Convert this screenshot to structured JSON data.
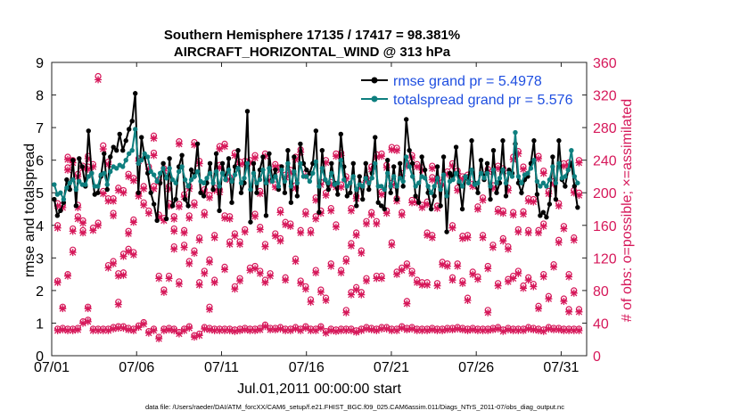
{
  "chart_data": {
    "type": "line",
    "title": "Southern Hemisphere 17135 / 17417 = 98.381%",
    "subtitle": "AIRCRAFT_HORIZONTAL_WIND @ 313 hPa",
    "xlabel": "Jul.01,2011 00:00:00 start",
    "ylabel_left": "rmse and totalspread",
    "ylabel_right": "# of obs: o=possible; ×=assimilated",
    "footer": "data file: /Users/raeder/DAI/ATM_forcXX/CAM6_setup/f.e21.FHIST_BGC.f09_025.CAM6assim.011/Diags_NTrS_2011-07/obs_diag_output.nc",
    "x_range": [
      0,
      31.5
    ],
    "ylim_left": [
      0,
      9
    ],
    "ylim_right": [
      0,
      360
    ],
    "x_ticks": [
      {
        "value": 0,
        "label": "07/01"
      },
      {
        "value": 5,
        "label": "07/06"
      },
      {
        "value": 10,
        "label": "07/11"
      },
      {
        "value": 15,
        "label": "07/16"
      },
      {
        "value": 20,
        "label": "07/21"
      },
      {
        "value": 25,
        "label": "07/26"
      },
      {
        "value": 30,
        "label": "07/31"
      }
    ],
    "y_ticks_left": [
      "0",
      "1",
      "2",
      "3",
      "4",
      "5",
      "6",
      "7",
      "8",
      "9"
    ],
    "y_ticks_right": [
      "0",
      "40",
      "80",
      "120",
      "160",
      "200",
      "240",
      "280",
      "320",
      "360"
    ],
    "colors": {
      "rmse": "#000000",
      "spread": "#0e7f7f",
      "obs": "#d6185a",
      "legend_text": "#1f4fe0"
    },
    "legend": [
      {
        "name": "rmse grand pr = 5.4978"
      },
      {
        "name": "totalspread grand pr = 5.576"
      }
    ],
    "rmse": [
      4.8,
      4.3,
      4.45,
      4.7,
      5.4,
      5.1,
      6.0,
      4.6,
      6.05,
      5.8,
      5.2,
      6.9,
      5.6,
      4.95,
      5.0,
      5.5,
      6.2,
      5.1,
      6.1,
      6.4,
      6.3,
      6.8,
      6.3,
      6.6,
      6.95,
      7.2,
      8.05,
      5.0,
      6.7,
      6.1,
      5.6,
      5.0,
      4.65,
      4.15,
      5.3,
      5.9,
      4.2,
      6.05,
      4.6,
      4.8,
      5.8,
      6.15,
      4.8,
      4.6,
      5.7,
      5.5,
      6.5,
      5.0,
      4.9,
      5.3,
      5.9,
      5.1,
      6.2,
      4.45,
      5.9,
      5.4,
      6.05,
      4.7,
      5.8,
      6.3,
      5.0,
      5.3,
      7.5,
      4.1,
      5.9,
      5.0,
      5.7,
      6.1,
      4.3,
      6.2,
      5.4,
      5.7,
      5.1,
      5.8,
      5.0,
      6.3,
      4.7,
      6.1,
      4.9,
      6.5,
      5.9,
      5.7,
      5.6,
      5.9,
      6.9,
      4.4,
      6.3,
      5.4,
      5.1,
      5.9,
      5.3,
      4.95,
      6.8,
      5.8,
      4.9,
      5.0,
      5.9,
      4.6,
      5.5,
      4.8,
      5.9,
      5.1,
      5.6,
      6.7,
      4.7,
      4.6,
      4.5,
      6.0,
      5.0,
      5.8,
      4.8,
      5.9,
      5.2,
      7.25,
      6.3,
      5.9,
      4.9,
      4.7,
      6.1,
      5.7,
      5.0,
      4.5,
      4.9,
      5.8,
      4.6,
      6.1,
      3.8,
      5.6,
      5.5,
      6.4,
      5.3,
      4.5,
      5.5,
      5.4,
      6.6,
      5.3,
      5.0,
      6.0,
      5.4,
      5.9,
      4.8,
      6.3,
      5.0,
      5.3,
      6.6,
      4.9,
      5.7,
      5.6,
      6.5,
      5.3,
      5.0,
      5.4,
      5.5,
      5.9,
      6.6,
      4.95,
      4.3,
      4.4,
      4.25,
      4.65,
      6.1,
      4.8,
      6.6,
      5.4,
      5.2,
      5.7,
      5.9,
      5.2,
      4.55
    ],
    "spread": [
      5.25,
      4.95,
      5.0,
      4.8,
      5.15,
      5.3,
      5.4,
      5.1,
      5.35,
      5.25,
      5.25,
      5.5,
      5.6,
      5.2,
      5.2,
      5.55,
      5.6,
      5.25,
      5.65,
      5.8,
      5.75,
      5.85,
      5.8,
      6.0,
      6.2,
      6.3,
      6.95,
      5.9,
      6.0,
      6.2,
      6.1,
      5.65,
      5.55,
      5.35,
      5.6,
      5.75,
      5.45,
      5.75,
      5.4,
      5.3,
      5.65,
      5.8,
      5.4,
      5.2,
      5.4,
      5.5,
      5.65,
      5.35,
      5.3,
      5.45,
      5.6,
      5.3,
      5.65,
      5.2,
      5.6,
      5.4,
      5.7,
      5.35,
      5.55,
      5.75,
      5.3,
      5.45,
      5.9,
      5.1,
      5.6,
      5.3,
      5.4,
      5.7,
      5.3,
      5.75,
      5.35,
      5.5,
      5.2,
      5.7,
      5.35,
      5.9,
      5.2,
      5.65,
      5.3,
      5.9,
      5.5,
      5.5,
      5.35,
      5.6,
      5.95,
      5.2,
      5.75,
      5.4,
      5.3,
      5.6,
      5.25,
      5.3,
      6.0,
      5.4,
      5.2,
      5.3,
      5.5,
      5.1,
      5.25,
      5.2,
      5.45,
      5.3,
      5.45,
      5.9,
      5.2,
      5.2,
      5.1,
      5.6,
      5.2,
      5.5,
      5.2,
      5.45,
      5.35,
      6.1,
      5.8,
      5.5,
      5.2,
      5.3,
      5.5,
      5.45,
      5.2,
      5.0,
      5.2,
      5.45,
      5.1,
      5.55,
      4.9,
      5.35,
      5.4,
      5.6,
      5.35,
      5.2,
      5.5,
      5.3,
      5.7,
      5.25,
      5.3,
      5.6,
      5.45,
      5.6,
      5.2,
      5.7,
      5.3,
      5.45,
      5.7,
      5.3,
      5.6,
      5.5,
      6.85,
      5.5,
      5.3,
      5.55,
      5.6,
      5.75,
      6.0,
      5.35,
      5.2,
      5.3,
      5.2,
      5.4,
      5.8,
      5.3,
      5.9,
      5.45,
      5.5,
      5.7,
      6.3,
      5.5,
      5.3
    ],
    "obs_possible_groups": [
      [
        33,
        92,
        160,
        187
      ],
      [
        34,
        60,
        185
      ],
      [
        33,
        100,
        231,
        244
      ],
      [
        33,
        130,
        156,
        240
      ],
      [
        34,
        171,
        185,
        223
      ],
      [
        42,
        154,
        166,
        233
      ],
      [
        44,
        60,
        232,
        245
      ],
      [
        33,
        157,
        235
      ],
      [
        33,
        163,
        343
      ],
      [
        33,
        202,
        258
      ],
      [
        33,
        111,
        193,
        238
      ],
      [
        35,
        116,
        175,
        193
      ],
      [
        36,
        66,
        101,
        206
      ],
      [
        36,
        102,
        125,
        203
      ],
      [
        34,
        131,
        153,
        223
      ],
      [
        33,
        127,
        167,
        218
      ],
      [
        37,
        199,
        242
      ],
      [
        41,
        188,
        208
      ],
      [
        30,
        178,
        232
      ],
      [
        33,
        208,
        249,
        270
      ],
      [
        23,
        98,
        173,
        216
      ],
      [
        33,
        81,
        169,
        230
      ],
      [
        34,
        98,
        187,
        208
      ],
      [
        33,
        134,
        156,
        171
      ],
      [
        29,
        91,
        186,
        263
      ],
      [
        33,
        136,
        154,
        198
      ],
      [
        36,
        116,
        172,
        208
      ],
      [
        25,
        129,
        188,
        262
      ],
      [
        27,
        90,
        145,
        239
      ],
      [
        35,
        104,
        176,
        204
      ],
      [
        34,
        60,
        118,
        197
      ],
      [
        33,
        93,
        148,
        206
      ],
      [
        33,
        204,
        234,
        257
      ],
      [
        33,
        109,
        172,
        260
      ],
      [
        33,
        140,
        171,
        219
      ],
      [
        32,
        85,
        150,
        249
      ],
      [
        33,
        95,
        140,
        238
      ],
      [
        34,
        155,
        239
      ],
      [
        33,
        108,
        240
      ],
      [
        33,
        110,
        174,
        246
      ],
      [
        34,
        104,
        158,
        202
      ],
      [
        38,
        93,
        137,
        248
      ],
      [
        34,
        101,
        218
      ],
      [
        34,
        150,
        210,
        235
      ],
      [
        35,
        144,
        179,
        231
      ],
      [
        33,
        96,
        164,
        222
      ],
      [
        33,
        162,
        228
      ],
      [
        35,
        119,
        209,
        244
      ],
      [
        33,
        92,
        154,
        253
      ],
      [
        36,
        85,
        177,
        224
      ],
      [
        33,
        69,
        154
      ],
      [
        33,
        105,
        171,
        194
      ],
      [
        36,
        81,
        178,
        213
      ],
      [
        30,
        71,
        200,
        240
      ],
      [
        33,
        113,
        181,
        213
      ],
      [
        32,
        161,
        210,
        248
      ],
      [
        33,
        105,
        210,
        249
      ],
      [
        33,
        56,
        119,
        220
      ],
      [
        33,
        78,
        138,
        181
      ],
      [
        31,
        84,
        151,
        196
      ],
      [
        33,
        78,
        129,
        210
      ],
      [
        35,
        95,
        165,
        218
      ],
      [
        34,
        176,
        232
      ],
      [
        33,
        98,
        165,
        247
      ],
      [
        35,
        98,
        201,
        248
      ],
      [
        35,
        178,
        234
      ],
      [
        33,
        139,
        212,
        256
      ],
      [
        33,
        103,
        193,
        255
      ],
      [
        36,
        108,
        176,
        224
      ],
      [
        34,
        67,
        113,
        236
      ],
      [
        35,
        104,
        191,
        246
      ],
      [
        33,
        93,
        191,
        235
      ],
      [
        33,
        90,
        185,
        231
      ],
      [
        33,
        90,
        151,
        189
      ],
      [
        34,
        148,
        219,
        233
      ],
      [
        33,
        89,
        184,
        218
      ],
      [
        33,
        115,
        213
      ],
      [
        34,
        113,
        226
      ],
      [
        34,
        96,
        160,
        236
      ],
      [
        35,
        113,
        206,
        227
      ],
      [
        34,
        92,
        147,
        220
      ],
      [
        33,
        71,
        148,
        222
      ],
      [
        34,
        103,
        211
      ],
      [
        33,
        97,
        183
      ],
      [
        33,
        148,
        194
      ],
      [
        33,
        56,
        110,
        229
      ],
      [
        34,
        136,
        209
      ],
      [
        35,
        89,
        180,
        233
      ],
      [
        32,
        144,
        178,
        230
      ],
      [
        34,
        94,
        134,
        206
      ],
      [
        33,
        98,
        176,
        244
      ],
      [
        33,
        104,
        155,
        251
      ],
      [
        33,
        86,
        177,
        232
      ],
      [
        35,
        96,
        154,
        193
      ],
      [
        34,
        88,
        192
      ],
      [
        33,
        61,
        154,
        245
      ],
      [
        32,
        100,
        162,
        227
      ],
      [
        35,
        73,
        202
      ],
      [
        34,
        112,
        214
      ],
      [
        34,
        142,
        187
      ],
      [
        33,
        70,
        159,
        236
      ],
      [
        33,
        57,
        100,
        237
      ],
      [
        33,
        80,
        145,
        203
      ],
      [
        33,
        57,
        200,
        240
      ]
    ],
    "obs_assimilated_groups": [
      [
        33,
        92,
        159,
        186
      ],
      [
        34,
        60,
        184
      ],
      [
        33,
        100,
        230,
        243
      ],
      [
        33,
        129,
        155,
        239
      ],
      [
        34,
        170,
        184,
        222
      ],
      [
        42,
        153,
        165,
        232
      ],
      [
        44,
        60,
        231,
        244
      ],
      [
        33,
        156,
        234
      ],
      [
        33,
        162,
        341
      ],
      [
        33,
        201,
        256
      ],
      [
        33,
        110,
        192,
        237
      ],
      [
        35,
        115,
        174,
        192
      ],
      [
        36,
        65,
        100,
        205
      ],
      [
        36,
        101,
        124,
        202
      ],
      [
        34,
        130,
        152,
        222
      ],
      [
        33,
        126,
        166,
        217
      ],
      [
        37,
        198,
        241
      ],
      [
        41,
        187,
        207
      ],
      [
        30,
        177,
        231
      ],
      [
        33,
        207,
        248,
        269
      ],
      [
        23,
        97,
        172,
        215
      ],
      [
        33,
        80,
        168,
        229
      ],
      [
        34,
        97,
        186,
        207
      ],
      [
        33,
        133,
        155,
        170
      ],
      [
        29,
        90,
        185,
        262
      ],
      [
        33,
        135,
        153,
        197
      ],
      [
        36,
        115,
        171,
        207
      ],
      [
        25,
        128,
        187,
        261
      ],
      [
        27,
        89,
        144,
        238
      ],
      [
        35,
        103,
        175,
        203
      ],
      [
        34,
        59,
        117,
        196
      ],
      [
        33,
        92,
        147,
        205
      ],
      [
        33,
        203,
        233,
        256
      ],
      [
        33,
        108,
        171,
        259
      ],
      [
        33,
        139,
        170,
        218
      ],
      [
        32,
        84,
        149,
        248
      ],
      [
        33,
        94,
        139,
        237
      ],
      [
        34,
        154,
        238
      ],
      [
        33,
        107,
        239
      ],
      [
        33,
        109,
        173,
        245
      ],
      [
        34,
        103,
        157,
        201
      ],
      [
        38,
        92,
        136,
        247
      ],
      [
        34,
        100,
        217
      ],
      [
        34,
        149,
        209,
        234
      ],
      [
        35,
        143,
        178,
        230
      ],
      [
        33,
        95,
        163,
        221
      ],
      [
        33,
        161,
        227
      ],
      [
        35,
        118,
        208,
        243
      ],
      [
        33,
        91,
        153,
        252
      ],
      [
        36,
        84,
        176,
        223
      ],
      [
        33,
        68,
        153
      ],
      [
        33,
        104,
        170,
        193
      ],
      [
        36,
        80,
        177,
        212
      ],
      [
        30,
        70,
        199,
        239
      ],
      [
        33,
        112,
        180,
        212
      ],
      [
        32,
        160,
        209,
        247
      ],
      [
        33,
        104,
        209,
        248
      ],
      [
        33,
        55,
        118,
        219
      ],
      [
        33,
        77,
        137,
        180
      ],
      [
        31,
        83,
        150,
        195
      ],
      [
        33,
        77,
        128,
        209
      ],
      [
        35,
        94,
        164,
        217
      ],
      [
        34,
        175,
        231
      ],
      [
        33,
        97,
        164,
        246
      ],
      [
        35,
        97,
        200,
        247
      ],
      [
        35,
        177,
        233
      ],
      [
        33,
        138,
        211,
        255
      ],
      [
        33,
        102,
        192,
        254
      ],
      [
        36,
        107,
        175,
        223
      ],
      [
        34,
        66,
        112,
        235
      ],
      [
        35,
        103,
        190,
        245
      ],
      [
        33,
        92,
        190,
        234
      ],
      [
        33,
        89,
        184,
        230
      ],
      [
        33,
        89,
        150,
        188
      ],
      [
        34,
        147,
        218,
        232
      ],
      [
        33,
        88,
        183,
        217
      ],
      [
        33,
        114,
        212
      ],
      [
        34,
        112,
        225
      ],
      [
        34,
        95,
        159,
        235
      ],
      [
        35,
        112,
        205,
        226
      ],
      [
        34,
        91,
        146,
        219
      ],
      [
        33,
        70,
        147,
        221
      ],
      [
        34,
        102,
        210
      ],
      [
        33,
        96,
        182
      ],
      [
        33,
        147,
        193
      ],
      [
        33,
        55,
        109,
        228
      ],
      [
        34,
        135,
        208
      ],
      [
        35,
        88,
        179,
        232
      ],
      [
        32,
        143,
        177,
        229
      ],
      [
        34,
        93,
        133,
        205
      ],
      [
        33,
        97,
        175,
        243
      ],
      [
        33,
        103,
        154,
        250
      ],
      [
        33,
        85,
        176,
        231
      ],
      [
        35,
        95,
        153,
        192
      ],
      [
        34,
        87,
        191
      ],
      [
        33,
        60,
        153,
        244
      ],
      [
        32,
        99,
        161,
        226
      ],
      [
        35,
        72,
        201
      ],
      [
        34,
        111,
        213
      ],
      [
        34,
        141,
        186
      ],
      [
        33,
        69,
        158,
        235
      ],
      [
        33,
        56,
        99,
        236
      ],
      [
        33,
        79,
        144,
        202
      ],
      [
        33,
        56,
        199,
        239
      ]
    ]
  }
}
